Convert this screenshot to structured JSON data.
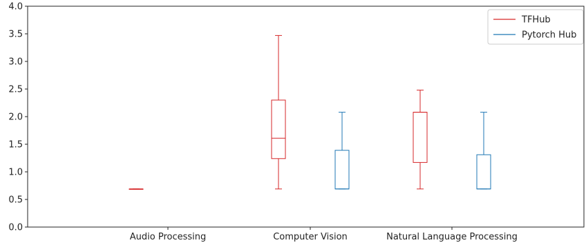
{
  "chart_data": {
    "type": "boxplot",
    "title": "",
    "xlabel": "",
    "ylabel": "",
    "ylim": [
      0,
      4
    ],
    "yticks": [
      "0.0",
      "0.5",
      "1.0",
      "1.5",
      "2.0",
      "2.5",
      "3.0",
      "3.5",
      "4.0"
    ],
    "categories": [
      "Audio Processing",
      "Computer Vision",
      "Natural Language Processing"
    ],
    "legend_position": "top-right",
    "grid": false,
    "series": [
      {
        "name": "TFHub",
        "color": "#d62728",
        "boxes": [
          {
            "category": "Audio Processing",
            "min": 0.69,
            "q1": 0.69,
            "median": 0.69,
            "q3": 0.69,
            "max": 0.69
          },
          {
            "category": "Computer Vision",
            "min": 0.69,
            "q1": 1.24,
            "median": 1.61,
            "q3": 2.3,
            "max": 3.47
          },
          {
            "category": "Natural Language Processing",
            "min": 0.69,
            "q1": 1.17,
            "median": 2.08,
            "q3": 2.08,
            "max": 2.48
          }
        ]
      },
      {
        "name": "Pytorch Hub",
        "color": "#1f77b4",
        "boxes": [
          {
            "category": "Computer Vision",
            "min": 0.69,
            "q1": 0.69,
            "median": 0.69,
            "q3": 1.39,
            "max": 2.08
          },
          {
            "category": "Natural Language Processing",
            "min": 0.69,
            "q1": 0.69,
            "median": 0.69,
            "q3": 1.31,
            "max": 2.08
          }
        ]
      }
    ]
  }
}
